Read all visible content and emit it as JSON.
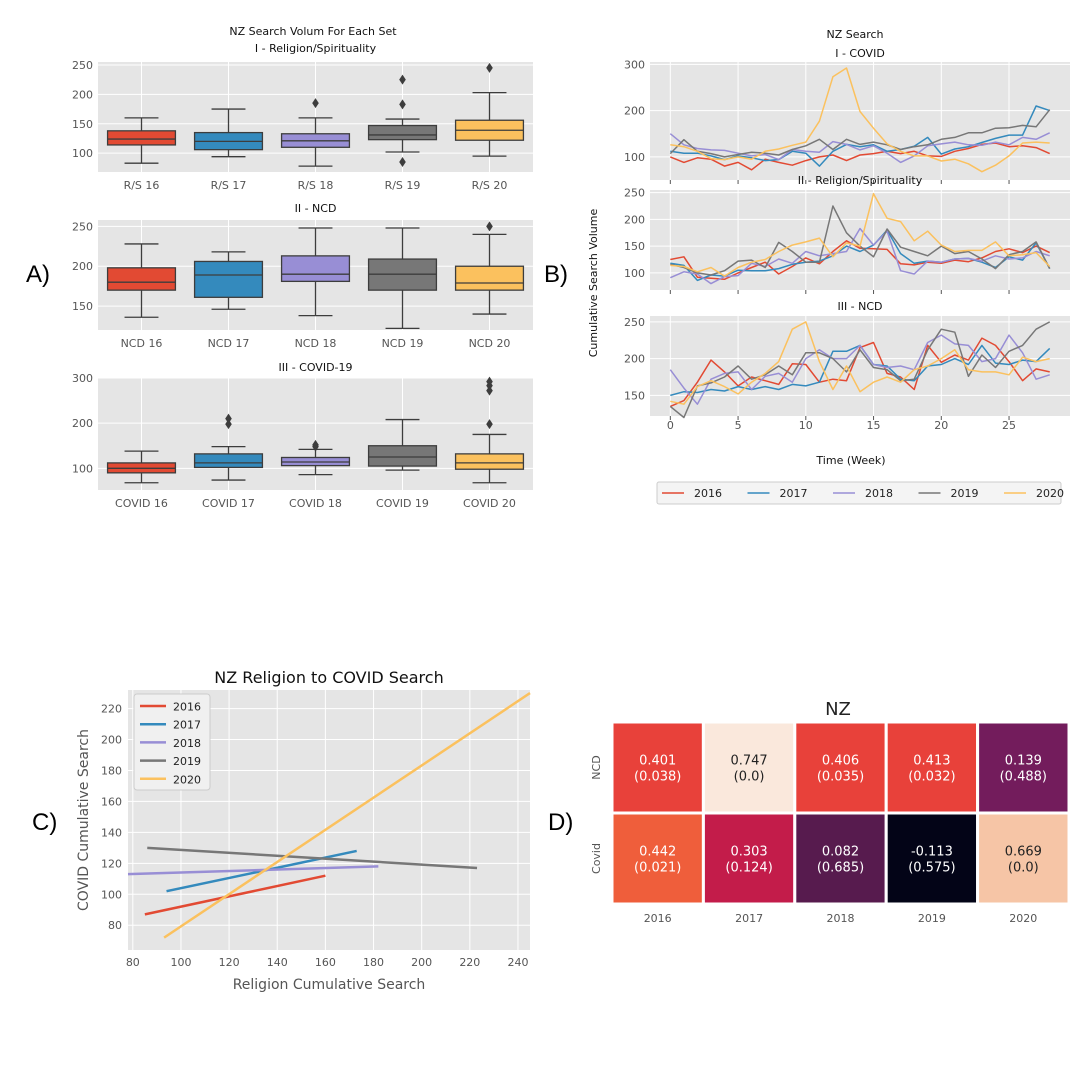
{
  "panel_labels": [
    "A)",
    "B)",
    "C)",
    "D)"
  ],
  "chart_data": [
    {
      "id": "A",
      "type": "box",
      "title": "NZ Search Volum For Each Set",
      "colors": [
        "#e24a33",
        "#348abd",
        "#988ed5",
        "#777777",
        "#fbc15e"
      ],
      "subplots": [
        {
          "subtitle": "I - Religion/Spirituality",
          "ylim": [
            68,
            255
          ],
          "yticks": [
            100,
            150,
            200,
            250
          ],
          "categories": [
            "R/S 16",
            "R/S 17",
            "R/S 18",
            "R/S 19",
            "R/S 20"
          ],
          "boxes": [
            {
              "whislo": 83,
              "q1": 114,
              "med": 124,
              "q3": 138,
              "whishi": 160,
              "fliers": []
            },
            {
              "whislo": 94,
              "q1": 106,
              "med": 120,
              "q3": 135,
              "whishi": 175,
              "fliers": []
            },
            {
              "whislo": 78,
              "q1": 110,
              "med": 121,
              "q3": 133,
              "whishi": 160,
              "fliers": [
                185
              ]
            },
            {
              "whislo": 102,
              "q1": 123,
              "med": 131,
              "q3": 147,
              "whishi": 158,
              "fliers": [
                85,
                183,
                225
              ]
            },
            {
              "whislo": 95,
              "q1": 122,
              "med": 139,
              "q3": 156,
              "whishi": 203,
              "fliers": [
                245
              ]
            }
          ]
        },
        {
          "subtitle": "II - NCD",
          "ylim": [
            120,
            258
          ],
          "yticks": [
            150,
            200,
            250
          ],
          "categories": [
            "NCD 16",
            "NCD 17",
            "NCD 18",
            "NCD 19",
            "NCD 20"
          ],
          "boxes": [
            {
              "whislo": 136,
              "q1": 170,
              "med": 180,
              "q3": 198,
              "whishi": 228,
              "fliers": []
            },
            {
              "whislo": 146,
              "q1": 161,
              "med": 189,
              "q3": 206,
              "whishi": 218,
              "fliers": []
            },
            {
              "whislo": 138,
              "q1": 181,
              "med": 190,
              "q3": 213,
              "whishi": 248,
              "fliers": []
            },
            {
              "whislo": 122,
              "q1": 170,
              "med": 190,
              "q3": 209,
              "whishi": 248,
              "fliers": []
            },
            {
              "whislo": 140,
              "q1": 170,
              "med": 179,
              "q3": 200,
              "whishi": 240,
              "fliers": [
                250
              ]
            }
          ]
        },
        {
          "subtitle": "III - COVID-19",
          "ylim": [
            52,
            300
          ],
          "yticks": [
            100,
            200,
            300
          ],
          "categories": [
            "COVID 16",
            "COVID 17",
            "COVID 18",
            "COVID 19",
            "COVID 20"
          ],
          "boxes": [
            {
              "whislo": 68,
              "q1": 90,
              "med": 100,
              "q3": 112,
              "whishi": 138,
              "fliers": []
            },
            {
              "whislo": 74,
              "q1": 102,
              "med": 112,
              "q3": 132,
              "whishi": 148,
              "fliers": [
                198,
                210
              ]
            },
            {
              "whislo": 86,
              "q1": 106,
              "med": 114,
              "q3": 124,
              "whishi": 142,
              "fliers": [
                148,
                152
              ]
            },
            {
              "whislo": 96,
              "q1": 105,
              "med": 125,
              "q3": 150,
              "whishi": 208,
              "fliers": []
            },
            {
              "whislo": 68,
              "q1": 98,
              "med": 112,
              "q3": 132,
              "whishi": 175,
              "fliers": [
                198,
                272,
                283,
                292
              ]
            }
          ]
        }
      ]
    },
    {
      "id": "B",
      "type": "line",
      "title": "NZ Search",
      "ylabel": "Cumulative Search Volume",
      "xlabel": "Time (Week)",
      "xticks": [
        0,
        5,
        10,
        15,
        20,
        25
      ],
      "xlim": [
        -1.5,
        29.5
      ],
      "series_names": [
        "2016",
        "2017",
        "2018",
        "2019",
        "2020"
      ],
      "colors": [
        "#e24a33",
        "#348abd",
        "#988ed5",
        "#777777",
        "#fbc15e"
      ],
      "subplots": [
        {
          "subtitle": "I - COVID",
          "ylim": [
            50,
            305
          ],
          "yticks": [
            100,
            200,
            300
          ],
          "series": [
            [
              100,
              88,
              98,
              95,
              80,
              88,
              72,
              95,
              88,
              82,
              92,
              100,
              104,
              92,
              104,
              107,
              112,
              107,
              112,
              102,
              101,
              112,
              118,
              127,
              130,
              122,
              124,
              120,
              107
            ],
            [
              112,
              108,
              108,
              102,
              94,
              102,
              98,
              92,
              94,
              112,
              108,
              80,
              112,
              127,
              122,
              126,
              112,
              116,
              123,
              142,
              106,
              117,
              122,
              131,
              140,
              147,
              147,
              210,
              200
            ],
            [
              150,
              126,
              118,
              115,
              114,
              108,
              102,
              105,
              94,
              116,
              112,
              110,
              133,
              127,
              115,
              124,
              108,
              88,
              102,
              124,
              128,
              132,
              126,
              125,
              132,
              126,
              142,
              138,
              152
            ],
            [
              107,
              137,
              112,
              107,
              100,
              105,
              110,
              108,
              104,
              116,
              124,
              138,
              116,
              138,
              127,
              132,
              126,
              116,
              122,
              126,
              138,
              142,
              152,
              152,
              162,
              163,
              168,
              165,
              202
            ],
            [
              126,
              122,
              112,
              96,
              94,
              100,
              95,
              112,
              117,
              125,
              132,
              177,
              273,
              292,
              198,
              162,
              128,
              112,
              102,
              102,
              91,
              95,
              85,
              68,
              82,
              102,
              130,
              132,
              130
            ]
          ]
        },
        {
          "subtitle": "II - Religion/Spirituality",
          "ylim": [
            68,
            255
          ],
          "yticks": [
            100,
            150,
            200,
            250
          ],
          "series": [
            [
              125,
              130,
              92,
              90,
              88,
              100,
              110,
              120,
              98,
              112,
              128,
              117,
              140,
              160,
              146,
              145,
              144,
              117,
              115,
              120,
              118,
              124,
              121,
              128,
              140,
              145,
              138,
              150,
              138
            ],
            [
              118,
              114,
              86,
              96,
              94,
              105,
              104,
              104,
              108,
              116,
              120,
              122,
              132,
              150,
              140,
              152,
              180,
              136,
              118,
              122,
              120,
              126,
              127,
              120,
              110,
              130,
              124,
              156,
              108
            ],
            [
              91,
              102,
              98,
              80,
              93,
              95,
              118,
              112,
              126,
              118,
              140,
              132,
              136,
              140,
              183,
              152,
              178,
              104,
              98,
              122,
              120,
              126,
              127,
              122,
              132,
              126,
              128,
              140,
              132
            ],
            [
              116,
              110,
              100,
              96,
              104,
              122,
              124,
              110,
              157,
              140,
              120,
              120,
              225,
              175,
              150,
              130,
              182,
              148,
              140,
              132,
              150,
              136,
              140,
              126,
              108,
              134,
              140,
              158,
              108
            ],
            [
              114,
              112,
              102,
              110,
              94,
              110,
              120,
              125,
              140,
              152,
              158,
              165,
              130,
              156,
              150,
              248,
              202,
              196,
              160,
              178,
              152,
              140,
              142,
              142,
              158,
              132,
              134,
              138,
              112
            ]
          ]
        },
        {
          "subtitle": "III - NCD",
          "ylim": [
            122,
            258
          ],
          "yticks": [
            150,
            200,
            250
          ],
          "series": [
            [
              135,
              143,
              168,
              198,
              182,
              163,
              175,
              170,
              165,
              193,
              192,
              168,
              172,
              170,
              215,
              222,
              180,
              175,
              158,
              218,
              195,
              205,
              198,
              228,
              218,
              196,
              170,
              186,
              182
            ],
            [
              150,
              155,
              154,
              158,
              156,
              162,
              158,
              162,
              158,
              165,
              163,
              168,
              210,
              210,
              218,
              192,
              190,
              172,
              170,
              190,
              192,
              200,
              192,
              218,
              194,
              192,
              198,
              196,
              214
            ],
            [
              185,
              160,
              138,
              172,
              180,
              182,
              158,
              176,
              180,
              168,
              200,
              212,
              200,
              200,
              218,
              192,
              188,
              190,
              185,
              222,
              232,
              220,
              218,
              196,
              200,
              232,
              208,
              172,
              178
            ],
            [
              135,
              120,
              163,
              167,
              175,
              190,
              172,
              178,
              190,
              178,
              208,
              208,
              200,
              182,
              212,
              188,
              185,
              170,
              172,
              212,
              240,
              236,
              176,
              205,
              188,
              210,
              218,
              240,
              250
            ],
            [
              142,
              138,
              162,
              170,
              162,
              152,
              168,
              180,
              196,
              240,
              250,
              196,
              158,
              190,
              155,
              168,
              175,
              168,
              185,
              190,
              200,
              212,
              185,
              182,
              182,
              178,
              202,
              196,
              200
            ]
          ]
        }
      ]
    },
    {
      "id": "C",
      "type": "line",
      "title": "NZ Religion to COVID Search",
      "xlabel": "Religion Cumulative Search",
      "ylabel": "COVID Cumulative Search",
      "xlim": [
        78,
        245
      ],
      "ylim": [
        64,
        232
      ],
      "xticks": [
        80,
        100,
        120,
        140,
        160,
        180,
        200,
        220,
        240
      ],
      "yticks": [
        80,
        100,
        120,
        140,
        160,
        180,
        200,
        220
      ],
      "series": [
        {
          "name": "2016",
          "color": "#e24a33",
          "x": [
            85,
            160
          ],
          "y": [
            87,
            112
          ]
        },
        {
          "name": "2017",
          "color": "#348abd",
          "x": [
            94,
            173
          ],
          "y": [
            102,
            128
          ]
        },
        {
          "name": "2018",
          "color": "#988ed5",
          "x": [
            78,
            182
          ],
          "y": [
            113,
            118
          ]
        },
        {
          "name": "2019",
          "color": "#777777",
          "x": [
            86,
            223
          ],
          "y": [
            130,
            117
          ]
        },
        {
          "name": "2020",
          "color": "#fbc15e",
          "x": [
            93,
            245
          ],
          "y": [
            72,
            230
          ]
        }
      ]
    },
    {
      "id": "D",
      "type": "heatmap",
      "title": "NZ",
      "columns": [
        "2016",
        "2017",
        "2018",
        "2019",
        "2020"
      ],
      "rows": [
        "NCD",
        "Covid"
      ],
      "values": [
        [
          0.401,
          0.747,
          0.406,
          0.413,
          0.139
        ],
        [
          0.442,
          0.303,
          0.082,
          -0.113,
          0.669
        ]
      ],
      "labels": [
        [
          "0.401\n(0.038)",
          "0.747\n(0.0)",
          "0.406\n(0.035)",
          "0.413\n(0.032)",
          "0.139\n(0.488)"
        ],
        [
          "0.442\n(0.021)",
          "0.303\n(0.124)",
          "0.082\n(0.685)",
          "-0.113\n(0.575)",
          "0.669\n(0.0)"
        ]
      ],
      "colors": [
        [
          "#e8413a",
          "#fae8dc",
          "#e8413a",
          "#e8413a",
          "#731c5c"
        ],
        [
          "#ef5e3b",
          "#c31c4a",
          "#571b4e",
          "#030417",
          "#f6c5a6"
        ]
      ],
      "text_colors": [
        [
          "#ffffff",
          "#222222",
          "#ffffff",
          "#ffffff",
          "#ffffff"
        ],
        [
          "#ffffff",
          "#ffffff",
          "#ffffff",
          "#ffffff",
          "#222222"
        ]
      ]
    }
  ]
}
